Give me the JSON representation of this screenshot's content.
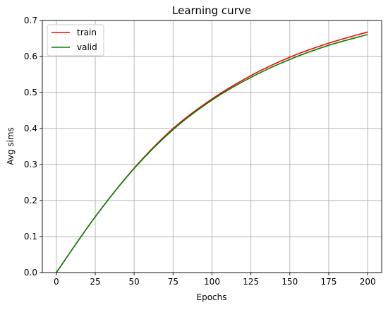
{
  "chart_data": {
    "type": "line",
    "title": "Learning curve",
    "xlabel": "Epochs",
    "ylabel": "Avg sims",
    "xlim": [
      -9,
      209
    ],
    "ylim": [
      0,
      0.7
    ],
    "xticks": [
      0,
      25,
      50,
      75,
      100,
      125,
      150,
      175,
      200
    ],
    "yticks": [
      0.0,
      0.1,
      0.2,
      0.3,
      0.4,
      0.5,
      0.6,
      0.7
    ],
    "grid": true,
    "legend_position": "top-left",
    "x": [
      0,
      25,
      50,
      75,
      100,
      125,
      150,
      175,
      200
    ],
    "series": [
      {
        "name": "train",
        "color": "#ff0000",
        "values": [
          0.0,
          0.155,
          0.29,
          0.4,
          0.482,
          0.547,
          0.598,
          0.637,
          0.668
        ]
      },
      {
        "name": "valid",
        "color": "#008000",
        "values": [
          0.0,
          0.155,
          0.289,
          0.397,
          0.479,
          0.542,
          0.592,
          0.631,
          0.661
        ]
      }
    ]
  }
}
